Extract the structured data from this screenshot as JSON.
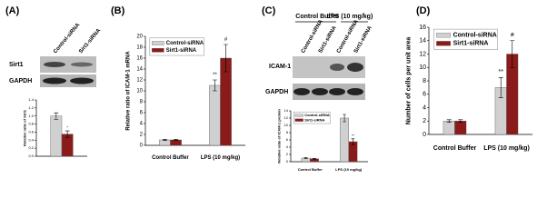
{
  "panel_labels": [
    "(A)",
    "(B)",
    "(C)",
    "(D)"
  ],
  "blots": [
    {
      "lanes": [
        "Control-siRNA",
        "Sirt1-siRNA"
      ],
      "rows": [
        "Sirt1",
        "GAPDH"
      ]
    },
    {
      "groups": [
        "Control Buffer",
        "LPS (10 mg/kg)"
      ],
      "lanes": [
        "Control-siRNA",
        "Sirt1-siRNA",
        "Control-siRNA",
        "Sirt1-siRNA"
      ],
      "rows": [
        "ICAM-1",
        "GAPDH"
      ]
    }
  ],
  "chart_data": [
    {
      "type": "bar",
      "ylabel": "Relative ratio of Sirt1",
      "categories": [
        null
      ],
      "series": [
        {
          "color": "#d0d0d0",
          "values": [
            1.0
          ],
          "errors": [
            0.08
          ],
          "markers": [
            null
          ]
        },
        {
          "color": "#8b1a1a",
          "values": [
            0.55
          ],
          "errors": [
            0.08
          ],
          "markers": [
            "*"
          ]
        }
      ],
      "ylim": [
        0,
        1.4
      ],
      "yticks": [
        {
          "value": 0,
          "label": "0.0"
        },
        {
          "value": 0.2,
          "label": "0.2"
        },
        {
          "value": 0.4,
          "label": "0.4"
        },
        {
          "value": 0.6,
          "label": "0.6"
        },
        {
          "value": 0.8,
          "label": "0.8"
        },
        {
          "value": 1.0,
          "label": "1.0"
        },
        {
          "value": 1.2,
          "label": "1.2"
        },
        {
          "value": 1.4,
          "label": "1.4"
        }
      ]
    },
    {
      "type": "bar",
      "ylabel": "Relative ratio of ICAM-1 mRNA",
      "categories": [
        "Control Buffer",
        "LPS (10 mg/kg)"
      ],
      "series": [
        {
          "name": "Control-siRNA",
          "color": "#d0d0d0",
          "values": [
            1,
            11
          ],
          "errors": [
            0.1,
            1
          ],
          "markers": [
            null,
            "**"
          ]
        },
        {
          "name": "Sirt1-siRNA",
          "color": "#8b1a1a",
          "values": [
            1,
            16
          ],
          "errors": [
            0.1,
            2.5
          ],
          "markers": [
            null,
            "#"
          ]
        }
      ],
      "ylim": [
        0,
        20
      ],
      "yticks": [
        0,
        2,
        4,
        6,
        8,
        10,
        12,
        14,
        16,
        18,
        20
      ],
      "legend": "upper left"
    },
    {
      "type": "bar",
      "ylabel": "Relative ratio of ICAM-1 protein",
      "categories": [
        "Control Buffer",
        "LPS (10 mg/kg)"
      ],
      "series": [
        {
          "name": "Control-siRNA",
          "color": "#d0d0d0",
          "values": [
            1,
            12
          ],
          "errors": [
            0.1,
            1
          ],
          "markers": [
            null,
            null
          ]
        },
        {
          "name": "Sirt1-siRNA",
          "color": "#8b1a1a",
          "values": [
            0.8,
            5.5
          ],
          "errors": [
            0.1,
            0.8
          ],
          "markers": [
            null,
            "**"
          ]
        }
      ],
      "ylim": [
        0,
        14
      ],
      "yticks": [
        0,
        2,
        4,
        6,
        8,
        10,
        12,
        14
      ],
      "legend": "upper left"
    },
    {
      "type": "bar",
      "ylabel": "Number of cells per unit area",
      "categories": [
        "Control Buffer",
        "LPS (10 mg/kg)"
      ],
      "series": [
        {
          "name": "Control-siRNA",
          "color": "#d0d0d0",
          "values": [
            2,
            7
          ],
          "errors": [
            0.2,
            1.5
          ],
          "markers": [
            null,
            "**"
          ]
        },
        {
          "name": "Sirt1-siRNA",
          "color": "#8b1a1a",
          "values": [
            2,
            12
          ],
          "errors": [
            0.2,
            2
          ],
          "markers": [
            null,
            "#"
          ]
        }
      ],
      "ylim": [
        0,
        16
      ],
      "yticks": [
        0,
        2,
        4,
        6,
        8,
        10,
        12,
        14,
        16
      ],
      "legend": "upper left"
    }
  ]
}
